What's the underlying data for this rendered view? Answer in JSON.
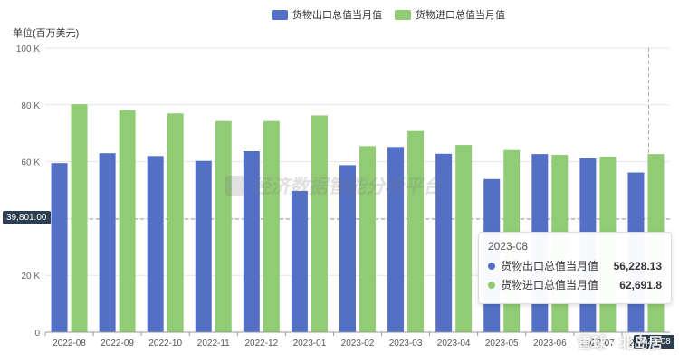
{
  "legend": [
    {
      "label": "货物出口总值当月值",
      "color": "#5470c6"
    },
    {
      "label": "货物进口总值当月值",
      "color": "#91cc75"
    }
  ],
  "unit_label": "单位(百万美元)",
  "watermark": "经济数据智能分析平台",
  "crosshair": {
    "y_label": "39,801.00",
    "x_label": "2023-08"
  },
  "tooltip": {
    "title": "2023-08",
    "rows": [
      {
        "name": "货物出口总值当月值",
        "value": "56,228.13",
        "color": "#5470c6"
      },
      {
        "name": "货物进口总值当月值",
        "value": "62,691.8",
        "color": "#91cc75"
      }
    ]
  },
  "corner_watermark": "雪球 · 北岛居",
  "chart_data": {
    "type": "bar",
    "categories": [
      "2022-08",
      "2022-09",
      "2022-10",
      "2022-11",
      "2022-12",
      "2023-01",
      "2023-02",
      "2023-03",
      "2023-04",
      "2023-05",
      "2023-06",
      "2023-07",
      "2023-08"
    ],
    "series": [
      {
        "name": "货物出口总值当月值",
        "color": "#5470c6",
        "values": [
          59.5,
          63,
          62,
          60.3,
          63.7,
          49.7,
          58.8,
          65.2,
          62.8,
          53.9,
          62.7,
          61.2,
          56.2
        ]
      },
      {
        "name": "货物进口总值当月值",
        "color": "#91cc75",
        "values": [
          80.2,
          78.1,
          77,
          74.3,
          74.3,
          76.3,
          65.5,
          70.8,
          65.9,
          64.1,
          62.4,
          61.8,
          62.7
        ]
      }
    ],
    "ylim": [
      0,
      100
    ],
    "yticks": [
      0,
      20,
      40,
      60,
      80,
      100
    ],
    "ytick_labels": [
      "0",
      "20 K",
      "40 K",
      "60 K",
      "80 K",
      "100 K"
    ],
    "grid": true,
    "legend_position": "top"
  }
}
